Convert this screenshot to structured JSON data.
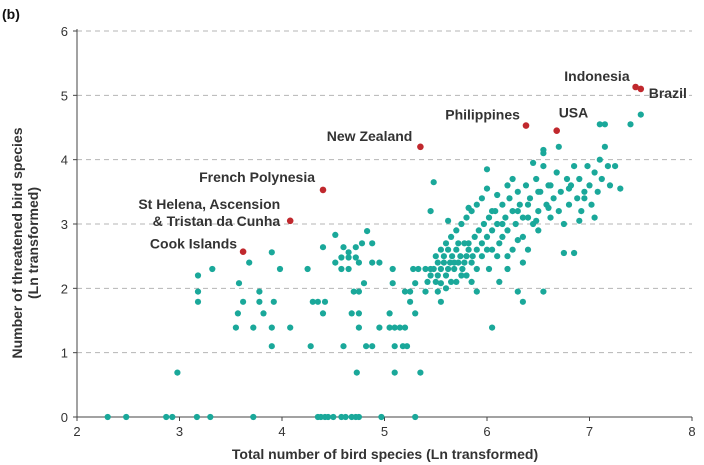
{
  "chart_data": {
    "type": "scatter",
    "panel_label": "(b)",
    "xlabel": "Total number of bird species (Ln transformed)",
    "ylabel_lines": [
      "Number of threatened bird species",
      "(Ln transformed)"
    ],
    "xlim": [
      2,
      8
    ],
    "ylim": [
      0,
      6
    ],
    "x_ticks": [
      2,
      3,
      4,
      5,
      6,
      7,
      8
    ],
    "y_ticks": [
      0,
      1,
      2,
      3,
      4,
      5,
      6
    ],
    "grid": "horizontal dashed",
    "colors": {
      "points": "#1aa89a",
      "highlight": "#c0282d",
      "grid": "#b5b5b5"
    },
    "highlighted": [
      {
        "label": "Indonesia",
        "x": 7.45,
        "y": 5.13
      },
      {
        "label": "Brazil",
        "x": 7.5,
        "y": 5.1
      },
      {
        "label": "Philippines",
        "x": 6.38,
        "y": 4.53
      },
      {
        "label": "USA",
        "x": 6.68,
        "y": 4.45
      },
      {
        "label": "New Zealand",
        "x": 5.35,
        "y": 4.2
      },
      {
        "label": "French Polynesia",
        "x": 4.4,
        "y": 3.53
      },
      {
        "label": "St Helena, Ascension\n& Tristan da Cunha",
        "x": 4.08,
        "y": 3.05
      },
      {
        "label": "Cook Islands",
        "x": 3.62,
        "y": 2.57
      }
    ],
    "points": [
      [
        2.3,
        0
      ],
      [
        2.48,
        0
      ],
      [
        2.87,
        0
      ],
      [
        2.93,
        0
      ],
      [
        3.17,
        0
      ],
      [
        3.3,
        0
      ],
      [
        3.72,
        0
      ],
      [
        4.35,
        0
      ],
      [
        4.38,
        0
      ],
      [
        4.42,
        0
      ],
      [
        4.45,
        0
      ],
      [
        4.5,
        0
      ],
      [
        4.58,
        0
      ],
      [
        4.62,
        0
      ],
      [
        4.68,
        0
      ],
      [
        4.72,
        0
      ],
      [
        4.75,
        0
      ],
      [
        4.97,
        0
      ],
      [
        5.3,
        0
      ],
      [
        2.98,
        0.69
      ],
      [
        4.73,
        0.69
      ],
      [
        5.1,
        0.69
      ],
      [
        5.35,
        0.69
      ],
      [
        3.9,
        1.1
      ],
      [
        4.28,
        1.1
      ],
      [
        4.6,
        1.1
      ],
      [
        4.82,
        1.1
      ],
      [
        4.88,
        1.1
      ],
      [
        5.1,
        1.1
      ],
      [
        5.18,
        1.1
      ],
      [
        5.22,
        1.1
      ],
      [
        3.55,
        1.39
      ],
      [
        3.72,
        1.39
      ],
      [
        3.9,
        1.39
      ],
      [
        4.08,
        1.39
      ],
      [
        4.75,
        1.39
      ],
      [
        4.95,
        1.39
      ],
      [
        5.05,
        1.39
      ],
      [
        5.1,
        1.39
      ],
      [
        5.15,
        1.39
      ],
      [
        5.2,
        1.39
      ],
      [
        6.05,
        1.39
      ],
      [
        3.57,
        1.61
      ],
      [
        3.82,
        1.61
      ],
      [
        4.4,
        1.61
      ],
      [
        4.68,
        1.61
      ],
      [
        4.75,
        1.61
      ],
      [
        5.05,
        1.61
      ],
      [
        5.3,
        1.61
      ],
      [
        3.18,
        1.79
      ],
      [
        3.62,
        1.79
      ],
      [
        3.78,
        1.79
      ],
      [
        3.92,
        1.79
      ],
      [
        4.3,
        1.79
      ],
      [
        4.35,
        1.79
      ],
      [
        4.42,
        1.79
      ],
      [
        5.25,
        1.79
      ],
      [
        5.55,
        1.79
      ],
      [
        6.35,
        1.79
      ],
      [
        3.18,
        1.95
      ],
      [
        3.78,
        1.95
      ],
      [
        4.7,
        1.95
      ],
      [
        4.75,
        1.95
      ],
      [
        5.2,
        1.95
      ],
      [
        5.25,
        1.95
      ],
      [
        5.4,
        1.95
      ],
      [
        6.3,
        1.95
      ],
      [
        6.55,
        1.95
      ],
      [
        3.58,
        2.08
      ],
      [
        4.8,
        2.08
      ],
      [
        5.08,
        2.08
      ],
      [
        5.3,
        2.08
      ],
      [
        5.55,
        2.08
      ],
      [
        3.18,
        2.2
      ],
      [
        3.32,
        2.3
      ],
      [
        3.98,
        2.3
      ],
      [
        4.25,
        2.3
      ],
      [
        4.58,
        2.3
      ],
      [
        4.65,
        2.3
      ],
      [
        5.08,
        2.3
      ],
      [
        5.28,
        2.3
      ],
      [
        5.33,
        2.3
      ],
      [
        5.4,
        2.3
      ],
      [
        5.45,
        2.3
      ],
      [
        3.68,
        2.4
      ],
      [
        4.52,
        2.4
      ],
      [
        4.75,
        2.4
      ],
      [
        4.88,
        2.4
      ],
      [
        4.95,
        2.4
      ],
      [
        5.68,
        2.4
      ],
      [
        4.58,
        2.48
      ],
      [
        4.65,
        2.48
      ],
      [
        4.72,
        2.48
      ],
      [
        3.9,
        2.56
      ],
      [
        4.65,
        2.56
      ],
      [
        4.6,
        2.64
      ],
      [
        4.4,
        2.64
      ],
      [
        4.72,
        2.64
      ],
      [
        4.78,
        2.7
      ],
      [
        4.88,
        2.7
      ],
      [
        4.52,
        2.83
      ],
      [
        4.83,
        2.89
      ],
      [
        5.5,
        2.1
      ],
      [
        5.52,
        2.2
      ],
      [
        5.55,
        2.3
      ],
      [
        5.58,
        2.4
      ],
      [
        5.6,
        2.2
      ],
      [
        5.62,
        2.3
      ],
      [
        5.64,
        2.4
      ],
      [
        5.66,
        2.5
      ],
      [
        5.68,
        2.3
      ],
      [
        5.7,
        2.6
      ],
      [
        5.72,
        2.4
      ],
      [
        5.74,
        2.5
      ],
      [
        5.76,
        2.3
      ],
      [
        5.78,
        2.7
      ],
      [
        5.8,
        2.5
      ],
      [
        5.82,
        2.6
      ],
      [
        5.85,
        2.4
      ],
      [
        5.88,
        2.8
      ],
      [
        5.9,
        2.6
      ],
      [
        5.92,
        2.9
      ],
      [
        5.95,
        2.7
      ],
      [
        5.97,
        3.0
      ],
      [
        6.0,
        2.8
      ],
      [
        6.02,
        3.1
      ],
      [
        6.05,
        2.9
      ],
      [
        6.08,
        3.2
      ],
      [
        6.1,
        3.0
      ],
      [
        6.12,
        2.7
      ],
      [
        6.15,
        3.3
      ],
      [
        6.18,
        3.1
      ],
      [
        6.2,
        2.9
      ],
      [
        6.22,
        3.4
      ],
      [
        6.25,
        3.2
      ],
      [
        6.28,
        3.0
      ],
      [
        6.3,
        3.5
      ],
      [
        6.32,
        3.3
      ],
      [
        6.35,
        2.8
      ],
      [
        6.38,
        3.6
      ],
      [
        6.4,
        3.1
      ],
      [
        6.42,
        3.4
      ],
      [
        6.45,
        3.0
      ],
      [
        6.48,
        3.7
      ],
      [
        6.5,
        3.2
      ],
      [
        6.52,
        3.5
      ],
      [
        6.55,
        3.9
      ],
      [
        6.58,
        3.3
      ],
      [
        6.6,
        3.6
      ],
      [
        6.62,
        3.1
      ],
      [
        6.65,
        3.4
      ],
      [
        6.68,
        3.8
      ],
      [
        6.7,
        3.2
      ],
      [
        6.72,
        3.5
      ],
      [
        6.75,
        3.0
      ],
      [
        6.78,
        3.7
      ],
      [
        6.8,
        3.3
      ],
      [
        6.82,
        3.6
      ],
      [
        6.85,
        3.9
      ],
      [
        6.88,
        3.4
      ],
      [
        6.9,
        3.7
      ],
      [
        6.92,
        3.2
      ],
      [
        6.95,
        3.5
      ],
      [
        6.98,
        3.9
      ],
      [
        7.0,
        3.6
      ],
      [
        7.02,
        3.3
      ],
      [
        7.05,
        3.8
      ],
      [
        7.08,
        3.5
      ],
      [
        7.1,
        4.0
      ],
      [
        7.12,
        3.7
      ],
      [
        7.15,
        4.2
      ],
      [
        7.18,
        3.9
      ],
      [
        7.2,
        3.6
      ],
      [
        7.25,
        3.9
      ],
      [
        7.3,
        3.55
      ],
      [
        7.4,
        4.55
      ],
      [
        7.5,
        4.7
      ],
      [
        7.1,
        4.55
      ],
      [
        7.15,
        4.55
      ],
      [
        6.7,
        4.2
      ],
      [
        6.55,
        4.1
      ],
      [
        5.45,
        2.2
      ],
      [
        5.5,
        2.5
      ],
      [
        5.55,
        2.6
      ],
      [
        5.6,
        2.7
      ],
      [
        5.65,
        2.8
      ],
      [
        5.7,
        2.9
      ],
      [
        5.75,
        3.0
      ],
      [
        5.8,
        3.1
      ],
      [
        5.85,
        3.2
      ],
      [
        5.9,
        3.3
      ],
      [
        5.95,
        3.4
      ],
      [
        6.0,
        3.55
      ],
      [
        6.05,
        3.2
      ],
      [
        6.1,
        3.45
      ],
      [
        6.15,
        3.0
      ],
      [
        6.2,
        3.6
      ],
      [
        6.25,
        3.7
      ],
      [
        6.3,
        3.2
      ],
      [
        6.35,
        3.1
      ],
      [
        6.4,
        3.3
      ],
      [
        5.42,
        2.1
      ],
      [
        5.48,
        2.3
      ],
      [
        5.52,
        2.4
      ],
      [
        5.58,
        2.5
      ],
      [
        5.62,
        2.6
      ],
      [
        5.72,
        2.7
      ],
      [
        5.78,
        2.4
      ],
      [
        5.82,
        2.7
      ],
      [
        5.86,
        2.5
      ],
      [
        5.9,
        2.3
      ],
      [
        5.95,
        2.5
      ],
      [
        6.0,
        2.6
      ],
      [
        5.8,
        2.2
      ],
      [
        5.75,
        2.2
      ],
      [
        5.65,
        2.1
      ],
      [
        5.7,
        2.1
      ],
      [
        5.85,
        2.1
      ],
      [
        6.05,
        2.6
      ],
      [
        6.1,
        2.5
      ],
      [
        6.2,
        2.5
      ],
      [
        5.48,
        3.65
      ],
      [
        5.45,
        3.2
      ],
      [
        5.62,
        3.05
      ],
      [
        5.82,
        3.25
      ],
      [
        6.0,
        3.85
      ],
      [
        6.45,
        3.95
      ],
      [
        6.55,
        4.15
      ],
      [
        6.62,
        3.6
      ],
      [
        6.75,
        2.55
      ],
      [
        6.85,
        2.55
      ],
      [
        6.95,
        3.4
      ],
      [
        7.05,
        3.1
      ],
      [
        6.5,
        2.9
      ],
      [
        6.4,
        2.6
      ],
      [
        6.5,
        3.5
      ],
      [
        5.6,
        2.0
      ],
      [
        5.52,
        1.95
      ],
      [
        5.9,
        1.95
      ],
      [
        6.02,
        2.3
      ],
      [
        6.15,
        2.8
      ],
      [
        6.25,
        2.6
      ],
      [
        6.35,
        2.4
      ],
      [
        6.2,
        2.3
      ],
      [
        6.12,
        2.1
      ],
      [
        6.3,
        2.75
      ],
      [
        6.48,
        3.05
      ],
      [
        6.6,
        3.25
      ],
      [
        6.8,
        3.55
      ],
      [
        6.9,
        3.05
      ]
    ]
  }
}
